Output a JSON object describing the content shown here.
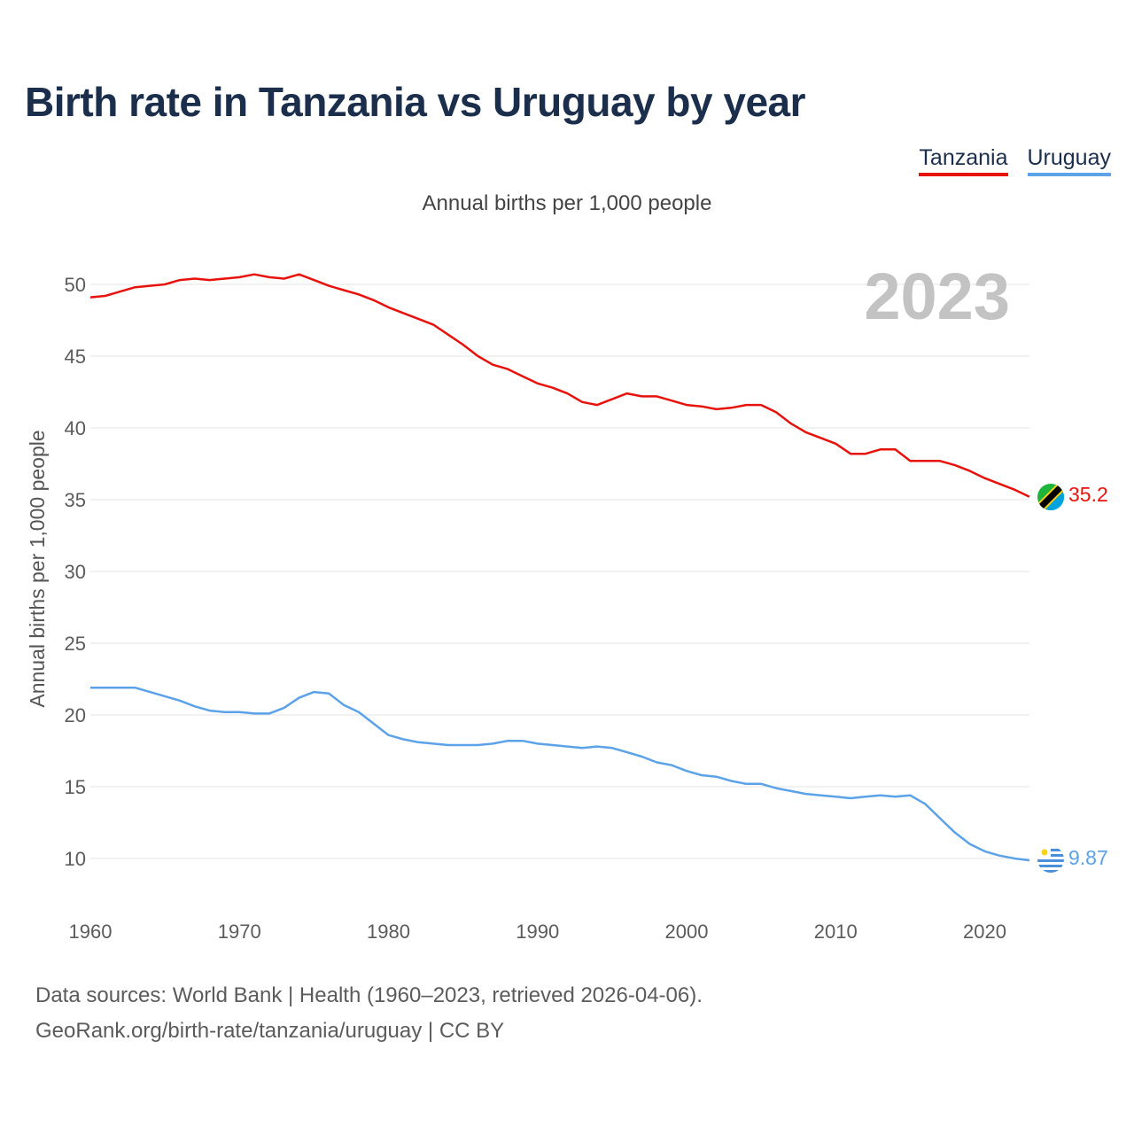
{
  "title": "Birth rate in Tanzania vs Uruguay by year",
  "subtitle": "Annual births per 1,000 people",
  "current_year": "2023",
  "legend": [
    {
      "name": "Tanzania",
      "color": "#e8120c"
    },
    {
      "name": "Uruguay",
      "color": "#5ba2e8"
    }
  ],
  "footer": {
    "line1": "Data sources: World Bank | Health (1960–2023, retrieved 2026-04-06).",
    "line2": "GeoRank.org/birth-rate/tanzania/uruguay | CC BY"
  },
  "chart_data": {
    "type": "line",
    "title": "Birth rate in Tanzania vs Uruguay by year",
    "xlabel": "",
    "ylabel": "Annual births per 1,000 people",
    "xlim": [
      1960,
      2023
    ],
    "ylim": [
      7,
      53
    ],
    "xticks": [
      1960,
      1970,
      1980,
      1990,
      2000,
      2010,
      2020
    ],
    "yticks": [
      10,
      15,
      20,
      25,
      30,
      35,
      40,
      45,
      50
    ],
    "grid": true,
    "legend_position": "top-right",
    "x": [
      1960,
      1961,
      1962,
      1963,
      1964,
      1965,
      1966,
      1967,
      1968,
      1969,
      1970,
      1971,
      1972,
      1973,
      1974,
      1975,
      1976,
      1977,
      1978,
      1979,
      1980,
      1981,
      1982,
      1983,
      1984,
      1985,
      1986,
      1987,
      1988,
      1989,
      1990,
      1991,
      1992,
      1993,
      1994,
      1995,
      1996,
      1997,
      1998,
      1999,
      2000,
      2001,
      2002,
      2003,
      2004,
      2005,
      2006,
      2007,
      2008,
      2009,
      2010,
      2011,
      2012,
      2013,
      2014,
      2015,
      2016,
      2017,
      2018,
      2019,
      2020,
      2021,
      2022,
      2023
    ],
    "series": [
      {
        "name": "Tanzania",
        "color": "#e8120c",
        "end_label": "35.2",
        "values": [
          49.1,
          49.2,
          49.5,
          49.8,
          49.9,
          50.0,
          50.3,
          50.4,
          50.3,
          50.4,
          50.5,
          50.7,
          50.5,
          50.4,
          50.7,
          50.3,
          49.9,
          49.6,
          49.3,
          48.9,
          48.4,
          48.0,
          47.6,
          47.2,
          46.5,
          45.8,
          45.0,
          44.4,
          44.1,
          43.6,
          43.1,
          42.8,
          42.4,
          41.8,
          41.6,
          42.0,
          42.4,
          42.2,
          42.2,
          41.9,
          41.6,
          41.5,
          41.3,
          41.4,
          41.6,
          41.6,
          41.1,
          40.3,
          39.7,
          39.3,
          38.9,
          38.2,
          38.2,
          38.5,
          38.5,
          37.7,
          37.7,
          37.7,
          37.4,
          37.0,
          36.5,
          36.1,
          35.7,
          35.2
        ]
      },
      {
        "name": "Uruguay",
        "color": "#5ba2e8",
        "end_label": "9.87",
        "values": [
          21.9,
          21.9,
          21.9,
          21.9,
          21.6,
          21.3,
          21.0,
          20.6,
          20.3,
          20.2,
          20.2,
          20.1,
          20.1,
          20.5,
          21.2,
          21.6,
          21.5,
          20.7,
          20.2,
          19.4,
          18.6,
          18.3,
          18.1,
          18.0,
          17.9,
          17.9,
          17.9,
          18.0,
          18.2,
          18.2,
          18.0,
          17.9,
          17.8,
          17.7,
          17.8,
          17.7,
          17.4,
          17.1,
          16.7,
          16.5,
          16.1,
          15.8,
          15.7,
          15.4,
          15.2,
          15.2,
          14.9,
          14.7,
          14.5,
          14.4,
          14.3,
          14.2,
          14.3,
          14.4,
          14.3,
          14.4,
          13.8,
          12.8,
          11.8,
          11.0,
          10.5,
          10.2,
          10.0,
          9.87
        ]
      }
    ]
  }
}
